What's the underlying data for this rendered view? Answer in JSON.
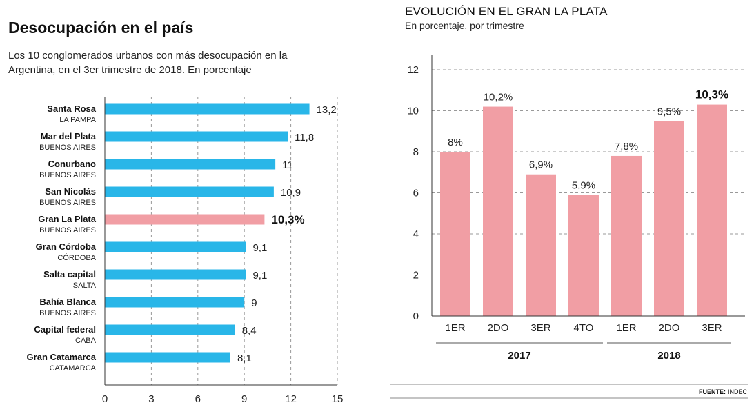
{
  "left": {
    "title": "Desocupación en el país",
    "subtitle_line1": "Los 10 conglomerados urbanos con más desocupación en la",
    "subtitle_line2": "Argentina, en el 3er trimestre de 2018. En porcentaje"
  },
  "right": {
    "title": "EVOLUCIÓN EN EL GRAN LA PLATA",
    "subtitle": "En porcentaje, por trimestre"
  },
  "source": {
    "label": "FUENTE:",
    "value": "INDEC"
  },
  "colors": {
    "bar_blue": "#29b6e8",
    "bar_pink": "#f19ea4",
    "grid": "#999999"
  },
  "chart_data": [
    {
      "type": "bar",
      "orientation": "horizontal",
      "title": "Desocupación en el país",
      "xlabel": "",
      "ylabel": "",
      "xlim": [
        0,
        15
      ],
      "xticks": [
        0,
        3,
        6,
        9,
        12,
        15
      ],
      "categories": [
        "Santa Rosa",
        "Mar del Plata",
        "Conurbano",
        "San Nicolás",
        "Gran La Plata",
        "Gran Córdoba",
        "Salta capital",
        "Bahía Blanca",
        "Capital federal",
        "Gran Catamarca"
      ],
      "subcategories": [
        "LA PAMPA",
        "BUENOS AIRES",
        "BUENOS AIRES",
        "BUENOS AIRES",
        "BUENOS AIRES",
        "CÓRDOBA",
        "SALTA",
        "BUENOS AIRES",
        "CABA",
        "CATAMARCA"
      ],
      "values": [
        13.2,
        11.8,
        11,
        10.9,
        10.3,
        9.1,
        9.1,
        9,
        8.4,
        8.1
      ],
      "value_labels": [
        "13,2",
        "11,8",
        "11",
        "10,9",
        "10,3%",
        "9,1",
        "9,1",
        "9",
        "8,4",
        "8,1"
      ],
      "highlight_index": 4,
      "grid": true
    },
    {
      "type": "bar",
      "orientation": "vertical",
      "title": "EVOLUCIÓN EN EL GRAN LA PLATA",
      "xlabel": "",
      "ylabel": "",
      "ylim": [
        0,
        12
      ],
      "yticks": [
        0,
        2,
        4,
        6,
        8,
        10,
        12
      ],
      "categories": [
        "1ER",
        "2DO",
        "3ER",
        "4TO",
        "1ER",
        "2DO",
        "3ER"
      ],
      "years": [
        {
          "label": "2017",
          "start": 0,
          "end": 3
        },
        {
          "label": "2018",
          "start": 4,
          "end": 6
        }
      ],
      "values": [
        8,
        10.2,
        6.9,
        5.9,
        7.8,
        9.5,
        10.3
      ],
      "value_labels": [
        "8%",
        "10,2%",
        "6,9%",
        "5,9%",
        "7,8%",
        "9,5%",
        "10,3%"
      ],
      "highlight_index": 6,
      "grid": true
    }
  ]
}
